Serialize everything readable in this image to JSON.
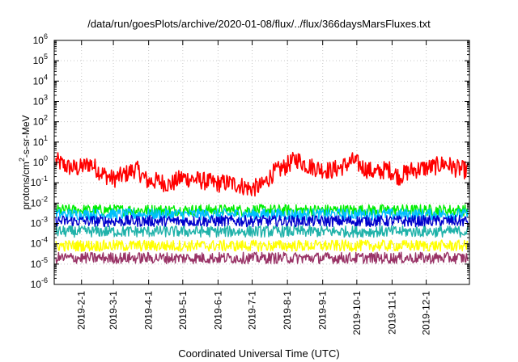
{
  "chart_data": {
    "type": "line",
    "title": "/data/run/goesPlots/archive/2020-01-08/flux/../flux/366daysMarsFluxes.txt",
    "xlabel": "Coordinated Universal Time (UTC)",
    "ylabel": {
      "prefix": "protons/cm",
      "sup": "2",
      "suffix": "-s-sr-MeV"
    },
    "y_scale": "log",
    "ylim": [
      1e-06,
      1000000.0
    ],
    "xlim": [
      "2019-01-08",
      "2020-01-08"
    ],
    "grid": true,
    "y_ticks": [
      {
        "value": 1e-06,
        "base": "10",
        "exp": "-6"
      },
      {
        "value": 1e-05,
        "base": "10",
        "exp": "-5"
      },
      {
        "value": 0.0001,
        "base": "10",
        "exp": "-4"
      },
      {
        "value": 0.001,
        "base": "10",
        "exp": "-3"
      },
      {
        "value": 0.01,
        "base": "10",
        "exp": "-2"
      },
      {
        "value": 0.1,
        "base": "10",
        "exp": "-1"
      },
      {
        "value": 1,
        "base": "10",
        "exp": "0"
      },
      {
        "value": 10,
        "base": "10",
        "exp": "1"
      },
      {
        "value": 100,
        "base": "10",
        "exp": "2"
      },
      {
        "value": 1000,
        "base": "10",
        "exp": "3"
      },
      {
        "value": 10000,
        "base": "10",
        "exp": "4"
      },
      {
        "value": 100000,
        "base": "10",
        "exp": "5"
      },
      {
        "value": 1000000,
        "base": "10",
        "exp": "6"
      }
    ],
    "x_ticks": [
      "2019-2-1",
      "2019-3-1",
      "2019-4-1",
      "2019-5-1",
      "2019-6-1",
      "2019-7-1",
      "2019-8-1",
      "2019-9-1",
      "2019-10-1",
      "2019-11-1",
      "2019-12-1"
    ],
    "series": [
      {
        "color": "#ff0000",
        "values": [
          1.2,
          0.6,
          0.5,
          0.9,
          0.3,
          0.15,
          0.25,
          0.5,
          0.12,
          0.12,
          0.08,
          0.18,
          0.15,
          0.12,
          0.09,
          0.1,
          0.08,
          0.05,
          0.07,
          0.3,
          0.6,
          1.5,
          0.7,
          0.5,
          0.4,
          0.6,
          1.2,
          0.5,
          0.3,
          0.5,
          0.2,
          0.4,
          0.5,
          0.6,
          0.9,
          0.5,
          0.4
        ]
      },
      {
        "color": "#00ee00",
        "values": [
          0.0045,
          0.0045,
          0.0045,
          0.0045,
          0.0045,
          0.0045,
          0.0045,
          0.0045,
          0.0045,
          0.0045,
          0.0045,
          0.0045,
          0.0045,
          0.0045,
          0.0045,
          0.0045,
          0.0045,
          0.0045,
          0.0045,
          0.0045,
          0.0045,
          0.0045,
          0.0045,
          0.0045,
          0.0045,
          0.0045,
          0.0045,
          0.0045,
          0.0045,
          0.0045,
          0.0045,
          0.0045,
          0.0045,
          0.0045,
          0.0045,
          0.0045,
          0.0045
        ]
      },
      {
        "color": "#00bfff",
        "values": [
          0.0028,
          0.0028,
          0.0028,
          0.0028,
          0.0028,
          0.0028,
          0.0028,
          0.0028,
          0.0028,
          0.0028,
          0.0028,
          0.0028,
          0.0028,
          0.0028,
          0.0028,
          0.0028,
          0.0028,
          0.0028,
          0.0028,
          0.0028,
          0.0028,
          0.0028,
          0.0028,
          0.0028,
          0.0028,
          0.0028,
          0.0028,
          0.0028,
          0.0028,
          0.0028,
          0.0028,
          0.0028,
          0.0028,
          0.0028,
          0.0028,
          0.0028,
          0.0028
        ]
      },
      {
        "color": "#0000cc",
        "values": [
          0.0013,
          0.0013,
          0.0013,
          0.0013,
          0.0013,
          0.0013,
          0.0013,
          0.0013,
          0.0013,
          0.0013,
          0.0013,
          0.0013,
          0.0013,
          0.0013,
          0.0013,
          0.0013,
          0.0013,
          0.0013,
          0.0013,
          0.0013,
          0.0013,
          0.0013,
          0.0013,
          0.0013,
          0.0013,
          0.0013,
          0.0013,
          0.0013,
          0.0013,
          0.0013,
          0.0013,
          0.0013,
          0.0013,
          0.0013,
          0.0013,
          0.0013,
          0.0013
        ]
      },
      {
        "color": "#20b2aa",
        "values": [
          0.0004,
          0.0004,
          0.0004,
          0.0004,
          0.0004,
          0.0004,
          0.0004,
          0.0004,
          0.0004,
          0.0004,
          0.0004,
          0.0004,
          0.0004,
          0.0004,
          0.0004,
          0.0004,
          0.0004,
          0.0004,
          0.0004,
          0.0004,
          0.0004,
          0.0004,
          0.0004,
          0.0004,
          0.0004,
          0.0004,
          0.0004,
          0.0004,
          0.0004,
          0.0004,
          0.0004,
          0.0004,
          0.0004,
          0.0004,
          0.0004,
          0.0004,
          0.0004
        ]
      },
      {
        "color": "#ffff00",
        "values": [
          8e-05,
          8e-05,
          8e-05,
          8e-05,
          8e-05,
          8e-05,
          8e-05,
          8e-05,
          8e-05,
          8e-05,
          8e-05,
          8e-05,
          8e-05,
          8e-05,
          8e-05,
          8e-05,
          8e-05,
          8e-05,
          8e-05,
          8e-05,
          8e-05,
          8e-05,
          8e-05,
          8e-05,
          8e-05,
          8e-05,
          8e-05,
          8e-05,
          8e-05,
          8e-05,
          8e-05,
          8e-05,
          8e-05,
          8e-05,
          8e-05,
          8e-05,
          8e-05
        ]
      },
      {
        "color": "#993366",
        "values": [
          2e-05,
          2e-05,
          2e-05,
          2e-05,
          2e-05,
          2e-05,
          2e-05,
          2e-05,
          2e-05,
          2e-05,
          2e-05,
          2e-05,
          2e-05,
          2e-05,
          2e-05,
          2e-05,
          2e-05,
          2e-05,
          2e-05,
          2e-05,
          2e-05,
          2e-05,
          2e-05,
          2e-05,
          2e-05,
          2e-05,
          2e-05,
          2e-05,
          2e-05,
          2e-05,
          2e-05,
          2e-05,
          2e-05,
          2e-05,
          2e-05,
          2e-05,
          2e-05
        ]
      }
    ]
  }
}
